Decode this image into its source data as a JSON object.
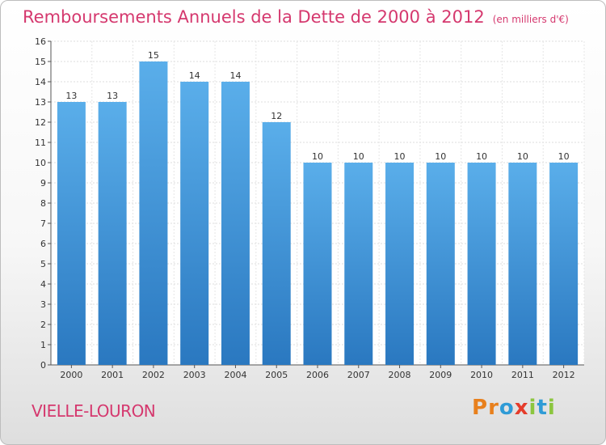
{
  "title": "Remboursements Annuels de la Dette de 2000 à 2012",
  "unit_label": "(en milliers d'€)",
  "commune": "VIELLE-LOURON",
  "brand": {
    "name": "Proxiti",
    "letters": [
      {
        "char": "P",
        "color": "#e8801d"
      },
      {
        "char": "r",
        "color": "#e8801d"
      },
      {
        "char": "o",
        "color": "#2f9bd6"
      },
      {
        "char": "x",
        "color": "#e53c2b"
      },
      {
        "char": "i",
        "color": "#8cc63f"
      },
      {
        "char": "t",
        "color": "#2f9bd6"
      },
      {
        "char": "i",
        "color": "#8cc63f"
      }
    ]
  },
  "chart_data": {
    "type": "bar",
    "title": "Remboursements Annuels de la Dette de 2000 à 2012",
    "ylabel": "(en milliers d'€)",
    "xlabel": "",
    "categories": [
      "2000",
      "2001",
      "2002",
      "2003",
      "2004",
      "2005",
      "2006",
      "2007",
      "2008",
      "2009",
      "2010",
      "2011",
      "2012"
    ],
    "values": [
      13,
      13,
      15,
      14,
      14,
      12,
      10,
      10,
      10,
      10,
      10,
      10,
      10
    ],
    "ylim": [
      0,
      16
    ],
    "yticks": [
      0,
      1,
      2,
      3,
      4,
      5,
      6,
      7,
      8,
      9,
      10,
      11,
      12,
      13,
      14,
      15,
      16
    ],
    "grid": true,
    "bar_color": "#3a8fd6",
    "value_labels": true
  }
}
